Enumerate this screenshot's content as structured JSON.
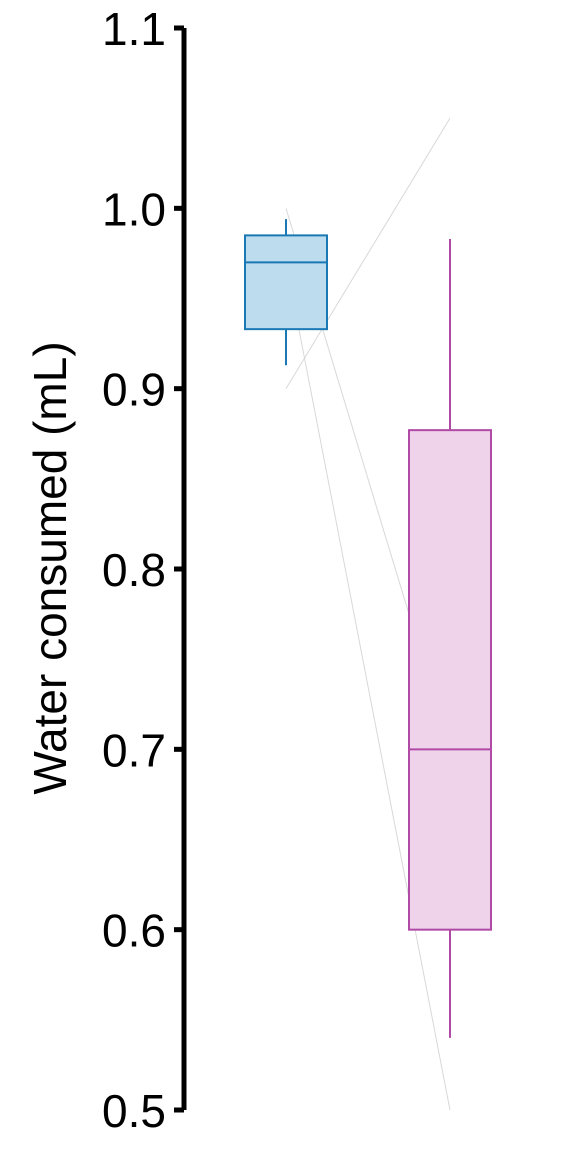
{
  "chart_data": {
    "type": "box",
    "ylabel": "Water consumed (mL)",
    "ylim": [
      0.5,
      1.1
    ],
    "yticks": [
      "0.5",
      "0.6",
      "0.7",
      "0.8",
      "0.9",
      "1.0",
      "1.1"
    ],
    "grid": false,
    "legend": "none",
    "groups": [
      {
        "color": "#1a78b4",
        "fill": "#bddcee",
        "whisker_low": 0.913,
        "q1": 0.933,
        "median": 0.97,
        "q3": 0.985,
        "whisker_high": 0.994
      },
      {
        "color": "#b04aa6",
        "fill": "#efd3ea",
        "whisker_low": 0.54,
        "q1": 0.6,
        "median": 0.7,
        "q3": 0.877,
        "whisker_high": 0.983
      }
    ],
    "paired_lines": [
      {
        "from": 1.0,
        "to": 0.7
      },
      {
        "from": 0.97,
        "to": 0.5
      },
      {
        "from": 0.9,
        "to": 1.05
      }
    ],
    "line_color": "#d8d8d8"
  }
}
